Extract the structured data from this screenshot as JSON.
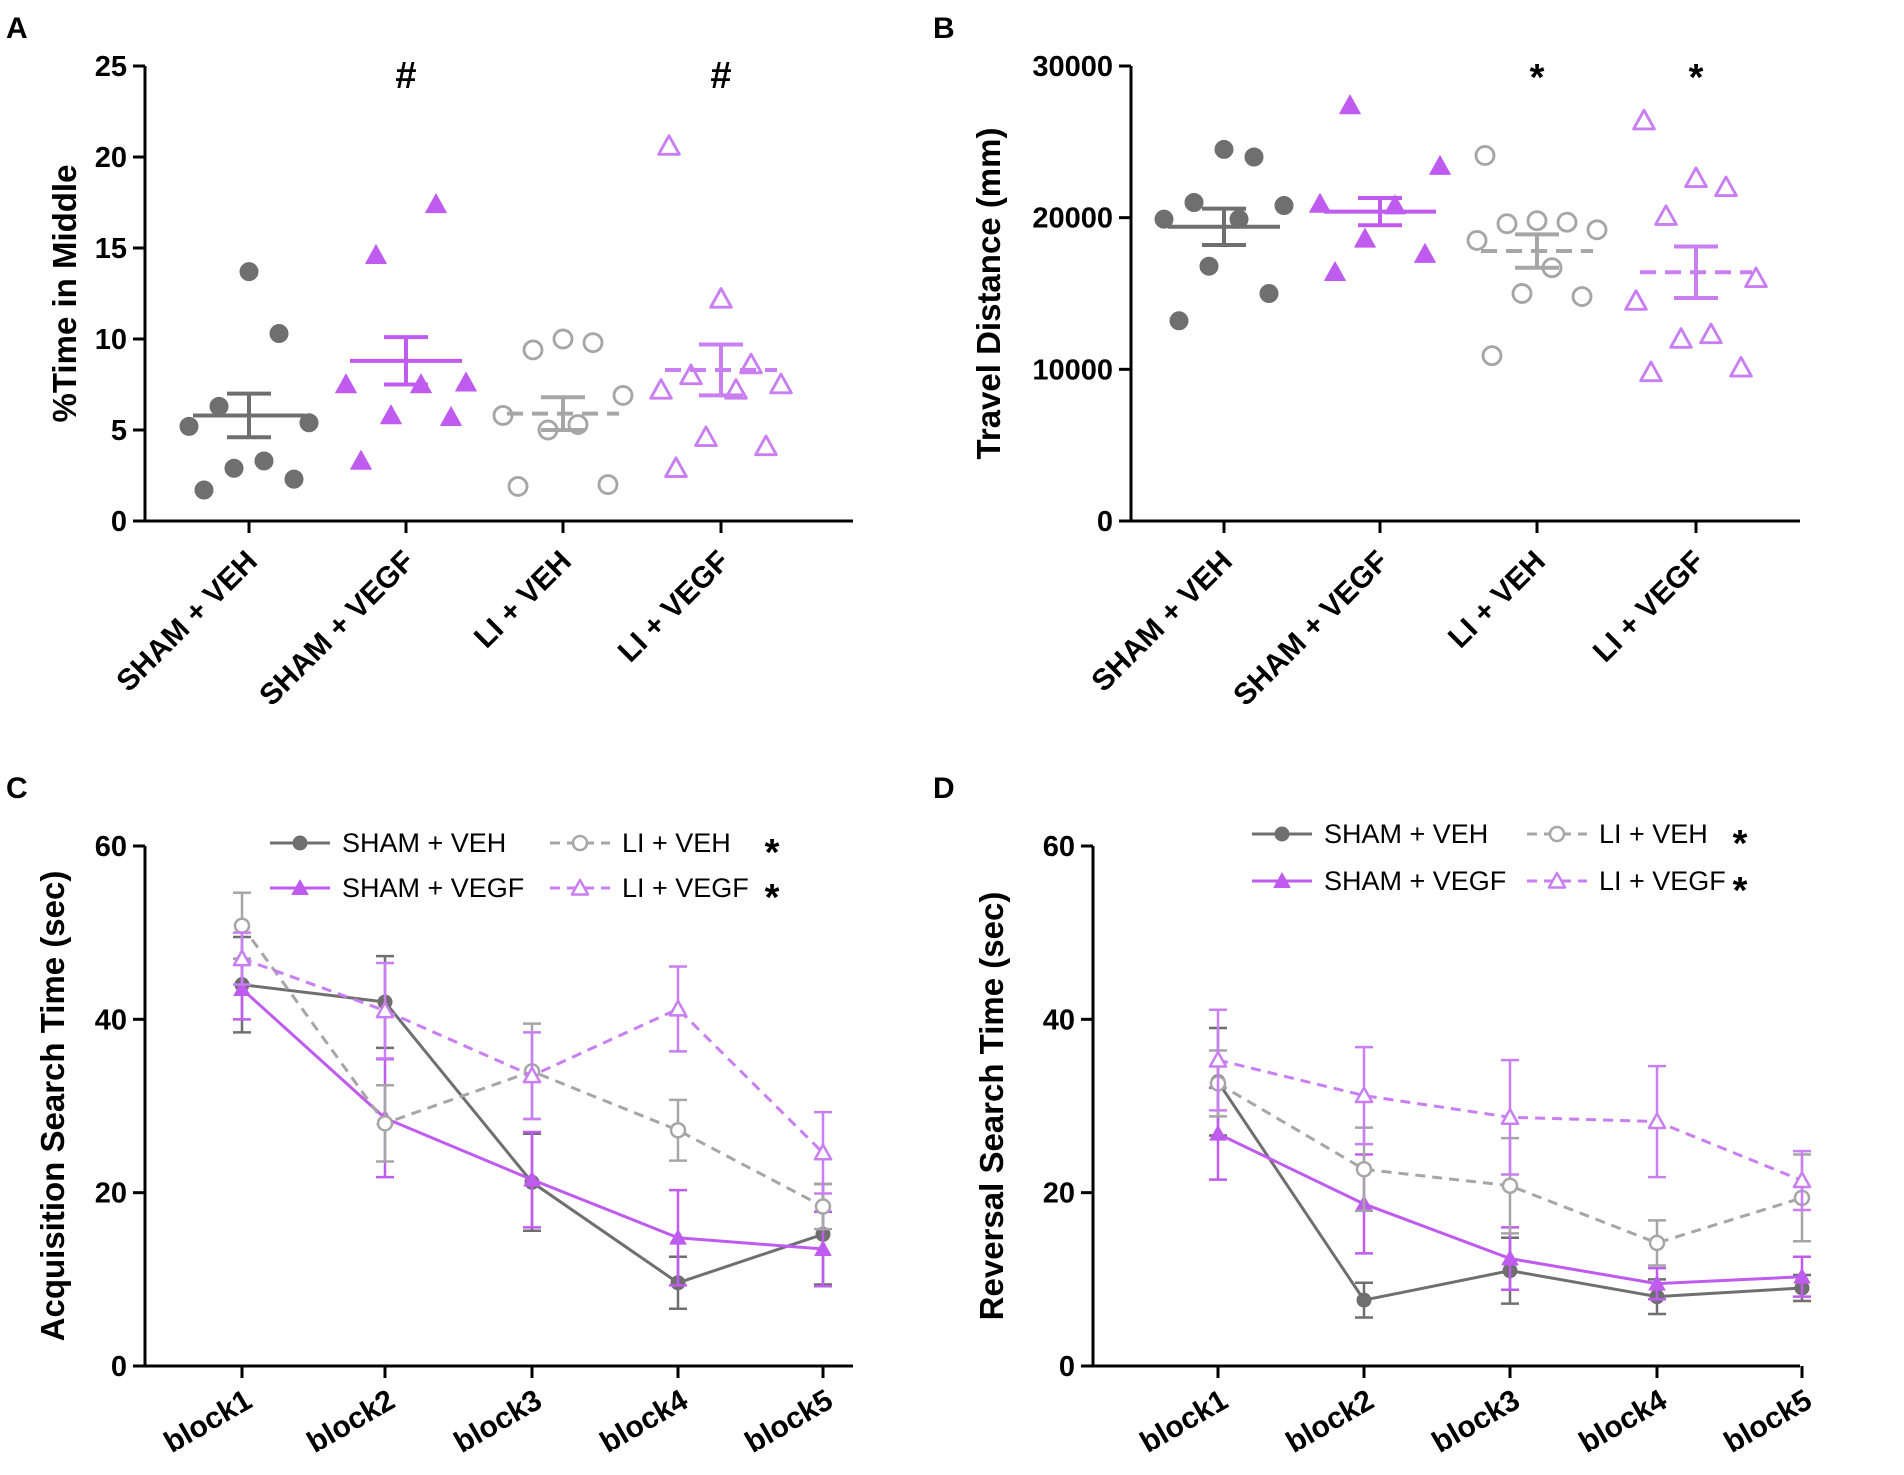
{
  "colors": {
    "gray": "#6f6f6f",
    "lightgray": "#a6a6a6",
    "purple": "#c05bf0",
    "lightpurple": "#c97ff2",
    "axis": "#000000"
  },
  "chart_data": [
    {
      "panel": "A",
      "type": "scatter",
      "ylabel": "%Time in Middle",
      "ylim": [
        0,
        25
      ],
      "yticks": [
        "0",
        "5",
        "10",
        "15",
        "20",
        "25"
      ],
      "categories": [
        "SHAM + VEH",
        "SHAM + VEGF",
        "LI + VEH",
        "LI + VEGF"
      ],
      "groups": [
        {
          "name": "SHAM + VEH",
          "marker": "circle-filled",
          "mean": 5.8,
          "sem": 1.2,
          "points": [
            1.7,
            2.3,
            2.9,
            3.3,
            5.2,
            5.4,
            6.3,
            10.3,
            13.7
          ]
        },
        {
          "name": "SHAM + VEGF",
          "marker": "triangle-filled",
          "mean": 8.8,
          "sem": 1.3,
          "points": [
            3.3,
            5.7,
            5.8,
            7.5,
            7.5,
            7.6,
            14.6,
            17.4
          ]
        },
        {
          "name": "LI + VEH",
          "marker": "circle-open",
          "mean": 5.9,
          "sem": 0.9,
          "points": [
            1.9,
            2.0,
            5.0,
            5.3,
            5.8,
            6.9,
            9.4,
            9.8,
            10.0
          ]
        },
        {
          "name": "LI + VEGF",
          "marker": "triangle-open",
          "mean": 8.3,
          "sem": 1.4,
          "points": [
            2.9,
            4.1,
            4.6,
            7.2,
            7.2,
            7.5,
            8.0,
            8.6,
            12.2,
            20.6
          ]
        }
      ],
      "annotations": [
        {
          "group": "SHAM + VEGF",
          "text": "#"
        },
        {
          "group": "LI + VEGF",
          "text": "#"
        }
      ]
    },
    {
      "panel": "B",
      "type": "scatter",
      "ylabel": "Travel Distance (mm)",
      "ylim": [
        0,
        30000
      ],
      "yticks": [
        "0",
        "10000",
        "20000",
        "30000"
      ],
      "categories": [
        "SHAM + VEH",
        "SHAM + VEGF",
        "LI + VEH",
        "LI + VEGF"
      ],
      "groups": [
        {
          "name": "SHAM + VEH",
          "marker": "circle-filled",
          "mean": 19400,
          "sem": 1200,
          "points": [
            13200,
            15000,
            16800,
            19900,
            19900,
            20800,
            21000,
            24000,
            24500
          ]
        },
        {
          "name": "SHAM + VEGF",
          "marker": "triangle-filled",
          "mean": 20400,
          "sem": 900,
          "points": [
            16400,
            17600,
            18600,
            20800,
            20900,
            23400,
            27400
          ]
        },
        {
          "name": "LI + VEH",
          "marker": "circle-open",
          "mean": 17800,
          "sem": 1100,
          "points": [
            10900,
            14800,
            15000,
            16700,
            18500,
            19200,
            19600,
            19700,
            19800,
            24100
          ]
        },
        {
          "name": "LI + VEGF",
          "marker": "triangle-open",
          "mean": 16400,
          "sem": 1700,
          "points": [
            9800,
            10100,
            12000,
            12300,
            14500,
            16000,
            20100,
            22000,
            22600,
            26400
          ]
        }
      ],
      "annotations": [
        {
          "group": "LI + VEH",
          "text": "*"
        },
        {
          "group": "LI + VEGF",
          "text": "*"
        }
      ]
    },
    {
      "panel": "C",
      "type": "line",
      "ylabel": "Acquisition Search Time  (sec)",
      "ylim": [
        0,
        60
      ],
      "yticks": [
        "0",
        "20",
        "40",
        "60"
      ],
      "categories": [
        "block1",
        "block2",
        "block3",
        "block4",
        "block5"
      ],
      "series": [
        {
          "name": "SHAM + VEH",
          "values": [
            44.0,
            42.0,
            21.2,
            9.6,
            15.2
          ],
          "err": [
            5.5,
            5.3,
            5.6,
            3.0,
            5.8
          ]
        },
        {
          "name": "SHAM + VEGF",
          "values": [
            43.5,
            28.6,
            21.5,
            14.8,
            13.5
          ],
          "err": [
            3.5,
            6.8,
            5.5,
            5.5,
            4.3
          ]
        },
        {
          "name": "LI + VEH",
          "values": [
            50.8,
            28.0,
            34.0,
            27.2,
            18.4
          ],
          "err": [
            3.8,
            4.4,
            5.5,
            3.5,
            2.6
          ]
        },
        {
          "name": "LI + VEGF",
          "values": [
            47.0,
            41.0,
            33.5,
            41.2,
            24.6
          ],
          "err": [
            3.0,
            5.5,
            5.0,
            4.9,
            4.7
          ]
        }
      ],
      "legend": {
        "labels": [
          "SHAM + VEH",
          "LI + VEH",
          "SHAM + VEGF",
          "LI + VEGF"
        ],
        "stars": [
          "*",
          "*"
        ]
      }
    },
    {
      "panel": "D",
      "type": "line",
      "ylabel": "Reversal Search Time  (sec)",
      "ylim": [
        0,
        60
      ],
      "yticks": [
        "0",
        "20",
        "40",
        "60"
      ],
      "categories": [
        "block1",
        "block2",
        "block3",
        "block4",
        "block5"
      ],
      "series": [
        {
          "name": "SHAM + VEH",
          "values": [
            32.8,
            7.6,
            11.0,
            8.0,
            9.0
          ],
          "err": [
            6.2,
            2.0,
            3.8,
            2.0,
            1.5
          ]
        },
        {
          "name": "SHAM + VEGF",
          "values": [
            26.8,
            18.7,
            12.4,
            9.5,
            10.3
          ],
          "err": [
            5.3,
            5.7,
            3.6,
            1.8,
            2.3
          ]
        },
        {
          "name": "LI + VEH",
          "values": [
            32.6,
            22.7,
            20.8,
            14.2,
            19.4
          ],
          "err": [
            3.8,
            4.8,
            5.5,
            2.6,
            5.0
          ]
        },
        {
          "name": "LI + VEGF",
          "values": [
            35.3,
            31.2,
            28.7,
            28.2,
            21.4
          ],
          "err": [
            5.8,
            5.6,
            6.6,
            6.4,
            3.4
          ]
        }
      ],
      "legend": {
        "labels": [
          "SHAM + VEH",
          "LI + VEH",
          "SHAM + VEGF",
          "LI + VEGF"
        ],
        "stars": [
          "*",
          "*"
        ]
      }
    }
  ]
}
